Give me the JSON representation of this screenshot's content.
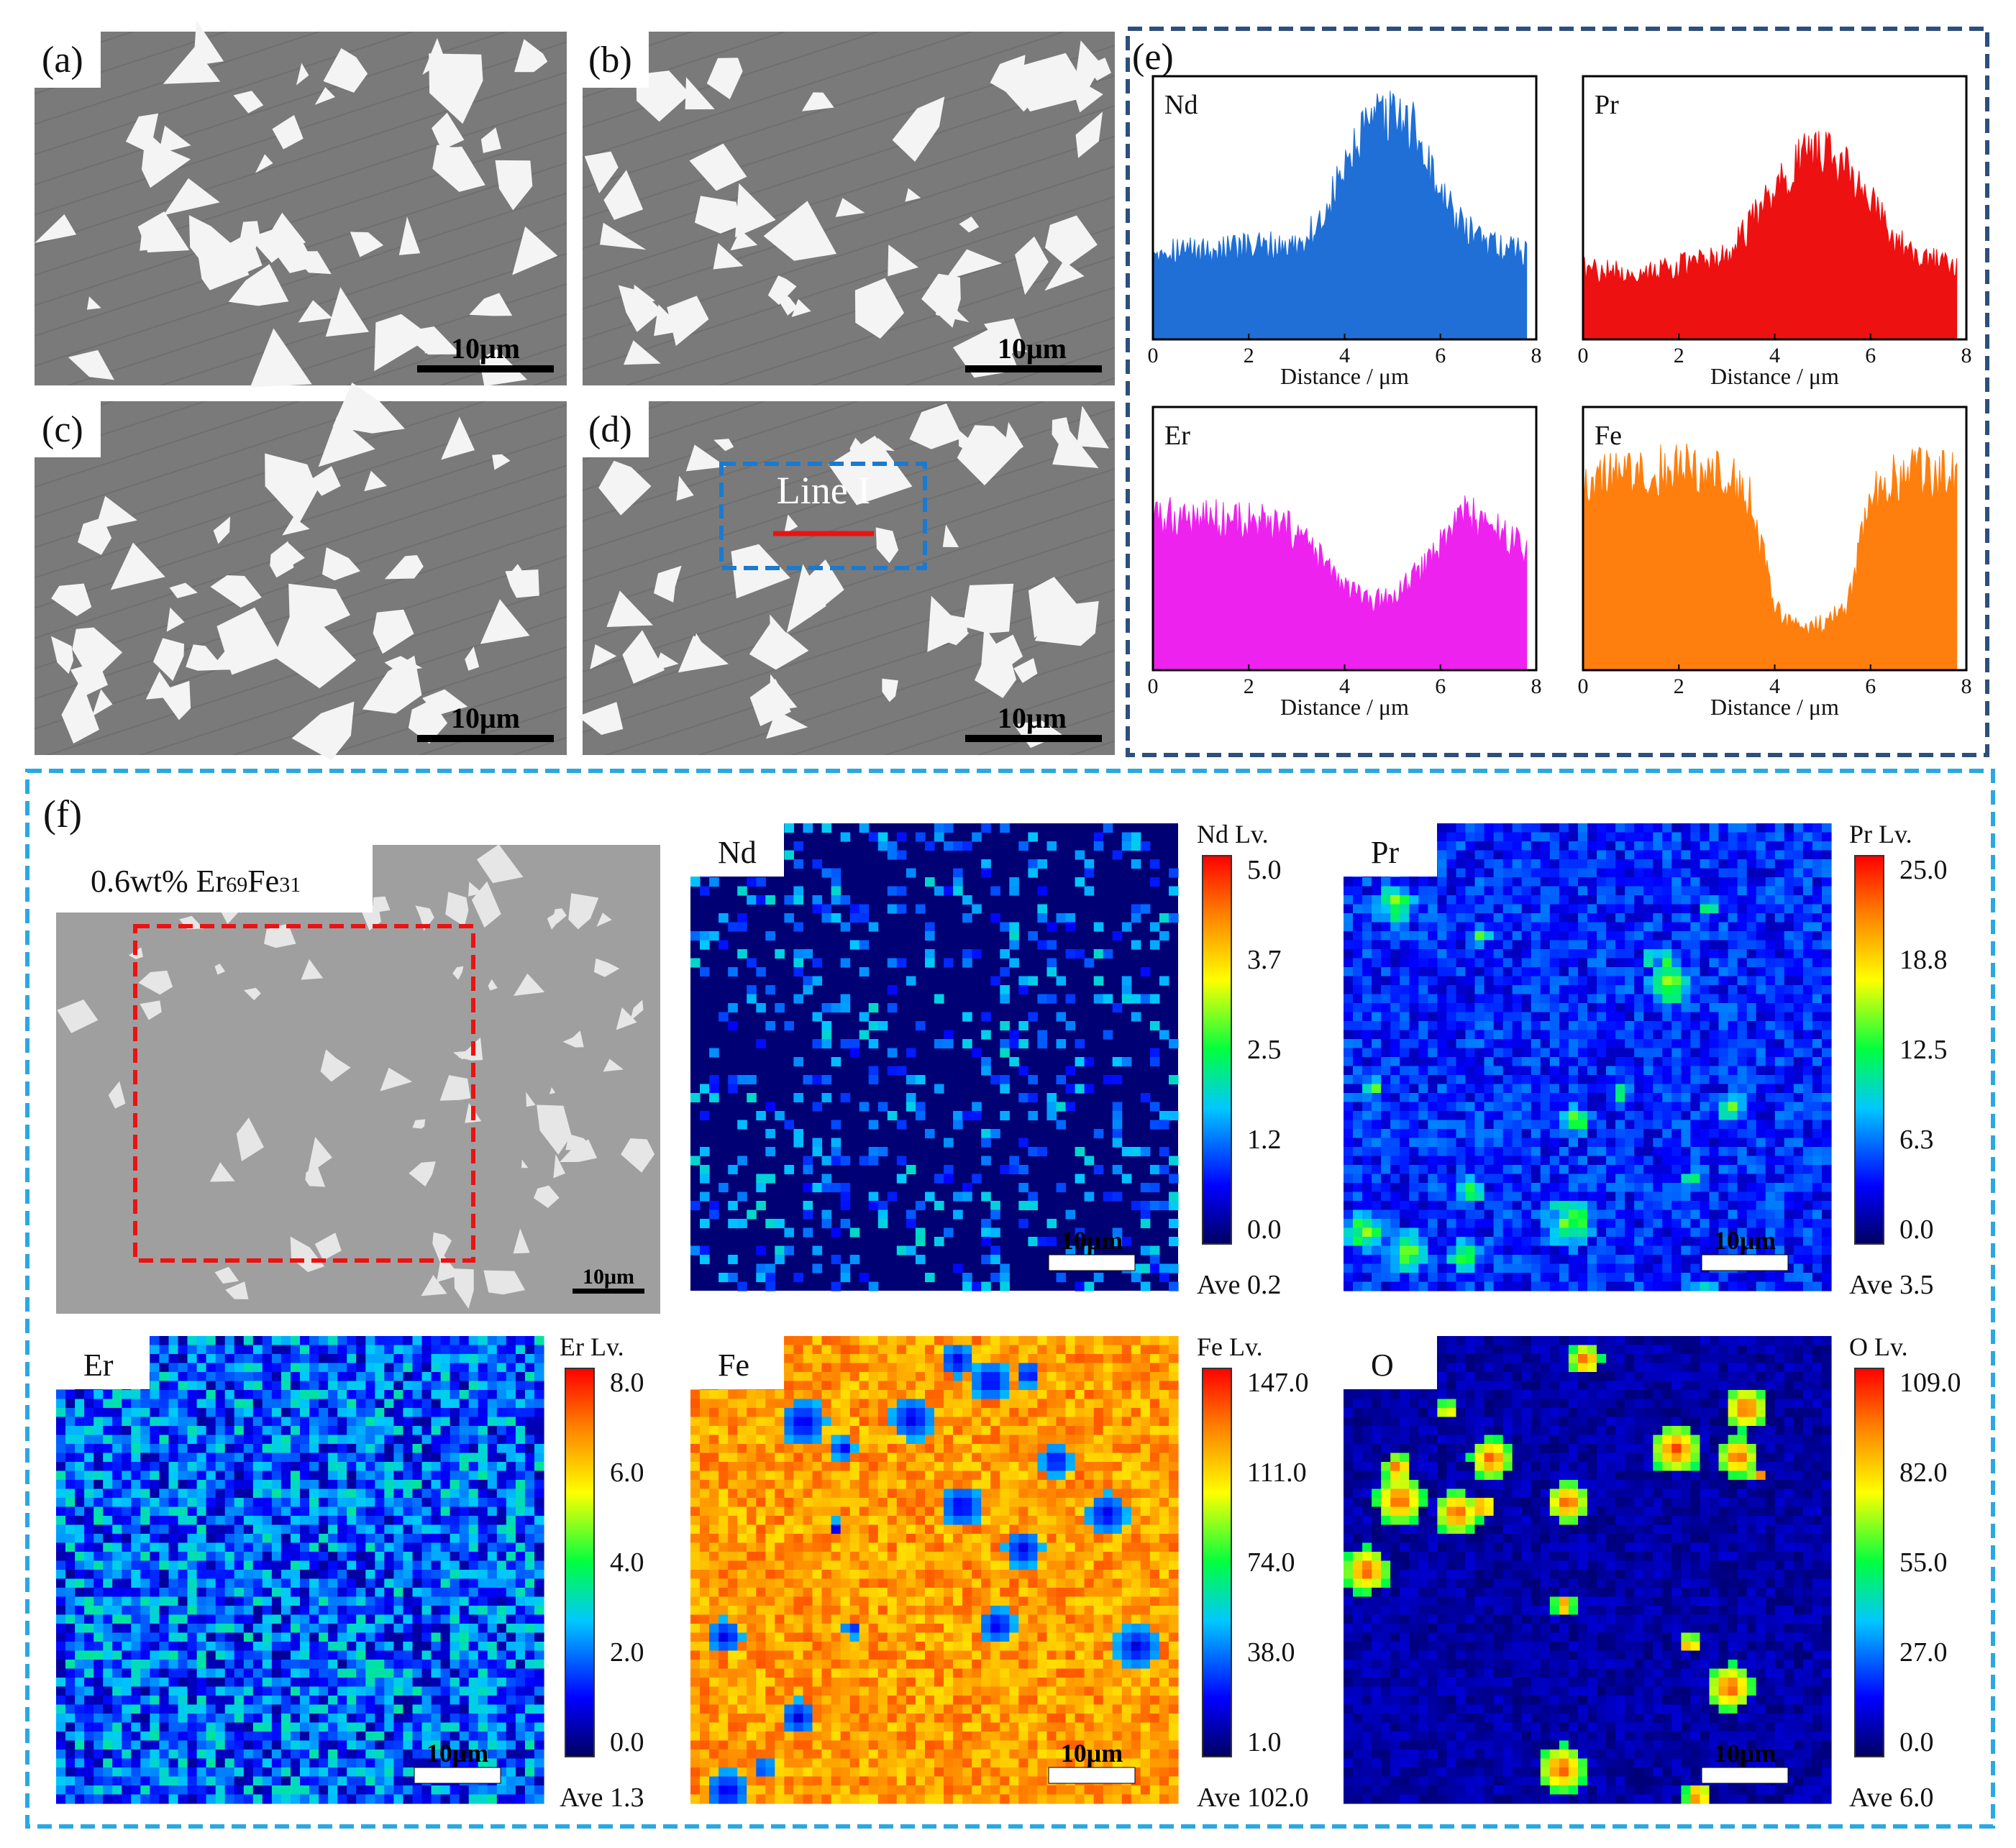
{
  "panels_sem": [
    {
      "id": "a",
      "label": "(a)",
      "scale": "10μm"
    },
    {
      "id": "b",
      "label": "(b)",
      "scale": "10μm"
    },
    {
      "id": "c",
      "label": "(c)",
      "scale": "10μm"
    },
    {
      "id": "d",
      "label": "(d)",
      "scale": "10μm",
      "annotation": "Line I"
    }
  ],
  "panel_e": {
    "label": "(e)",
    "chart_data": [
      {
        "type": "line",
        "title": "Nd",
        "xlabel": "Distance / μm",
        "xlim": [
          0,
          8
        ],
        "xticks": [
          "0",
          "2",
          "4",
          "6",
          "8"
        ],
        "color": "#1f6fd6",
        "x": [
          0,
          1,
          2,
          3,
          3.5,
          4,
          4.5,
          5,
          5.5,
          6,
          6.5,
          7,
          7.8
        ],
        "y": [
          0.33,
          0.32,
          0.33,
          0.34,
          0.42,
          0.62,
          0.78,
          0.82,
          0.76,
          0.52,
          0.4,
          0.34,
          0.32
        ]
      },
      {
        "type": "line",
        "title": "Pr",
        "xlabel": "Distance / μm",
        "xlim": [
          0,
          8
        ],
        "xticks": [
          "0",
          "2",
          "4",
          "6",
          "8"
        ],
        "color": "#ee1111",
        "x": [
          0,
          1,
          2,
          3,
          3.5,
          4,
          4.5,
          5,
          5.5,
          6,
          6.5,
          7,
          7.8
        ],
        "y": [
          0.25,
          0.24,
          0.26,
          0.3,
          0.42,
          0.55,
          0.65,
          0.7,
          0.62,
          0.5,
          0.36,
          0.3,
          0.27
        ]
      },
      {
        "type": "line",
        "title": "Er",
        "xlabel": "Distance / μm",
        "xlim": [
          0,
          8
        ],
        "xticks": [
          "0",
          "2",
          "4",
          "6",
          "8"
        ],
        "color": "#ee22ee",
        "x": [
          0,
          1,
          2,
          3,
          3.5,
          4,
          4.5,
          5,
          5.5,
          6,
          6.5,
          7,
          7.8
        ],
        "y": [
          0.55,
          0.56,
          0.54,
          0.5,
          0.4,
          0.3,
          0.24,
          0.26,
          0.34,
          0.46,
          0.58,
          0.52,
          0.44
        ]
      },
      {
        "type": "line",
        "title": "Fe",
        "xlabel": "Distance / μm",
        "xlim": [
          0,
          8
        ],
        "xticks": [
          "0",
          "2",
          "4",
          "6",
          "8"
        ],
        "color": "#ff7f0e",
        "x": [
          0,
          1,
          2,
          3,
          3.5,
          4,
          4.5,
          5,
          5.5,
          6,
          6.5,
          7,
          7.8
        ],
        "y": [
          0.7,
          0.72,
          0.74,
          0.72,
          0.62,
          0.22,
          0.15,
          0.16,
          0.22,
          0.62,
          0.7,
          0.72,
          0.71
        ]
      }
    ]
  },
  "panel_f": {
    "label": "(f)",
    "sem_caption_prefix": "0.6wt% Er",
    "sem_caption_sub1": "69",
    "sem_caption_mid": "Fe",
    "sem_caption_sub2": "31",
    "sem_scale": "10μm",
    "maps": [
      {
        "element": "Nd",
        "lv_label": "Nd  Lv.",
        "ticks": [
          "5.0",
          "3.7",
          "2.5",
          "1.2",
          "0.0"
        ],
        "ave": "Ave  0.2",
        "scale": "10μm",
        "style": "sparse"
      },
      {
        "element": "Pr",
        "lv_label": "Pr  Lv.",
        "ticks": [
          "25.0",
          "18.8",
          "12.5",
          "6.3",
          "0.0"
        ],
        "ave": "Ave  3.5",
        "scale": "10μm",
        "style": "medium"
      },
      {
        "element": "Er",
        "lv_label": "Er  Lv.",
        "ticks": [
          "8.0",
          "6.0",
          "4.0",
          "2.0",
          "0.0"
        ],
        "ave": "Ave  1.3",
        "scale": "10μm",
        "style": "noise"
      },
      {
        "element": "Fe",
        "lv_label": "Fe  Lv.",
        "ticks": [
          "147.0",
          "111.0",
          "74.0",
          "38.0",
          "1.0"
        ],
        "ave": "Ave 102.0",
        "scale": "10μm",
        "style": "high"
      },
      {
        "element": "O",
        "lv_label": "O  Lv.",
        "ticks": [
          "109.0",
          "82.0",
          "55.0",
          "27.0",
          "0.0"
        ],
        "ave": "Ave  6.0",
        "scale": "10μm",
        "style": "spots"
      }
    ]
  }
}
